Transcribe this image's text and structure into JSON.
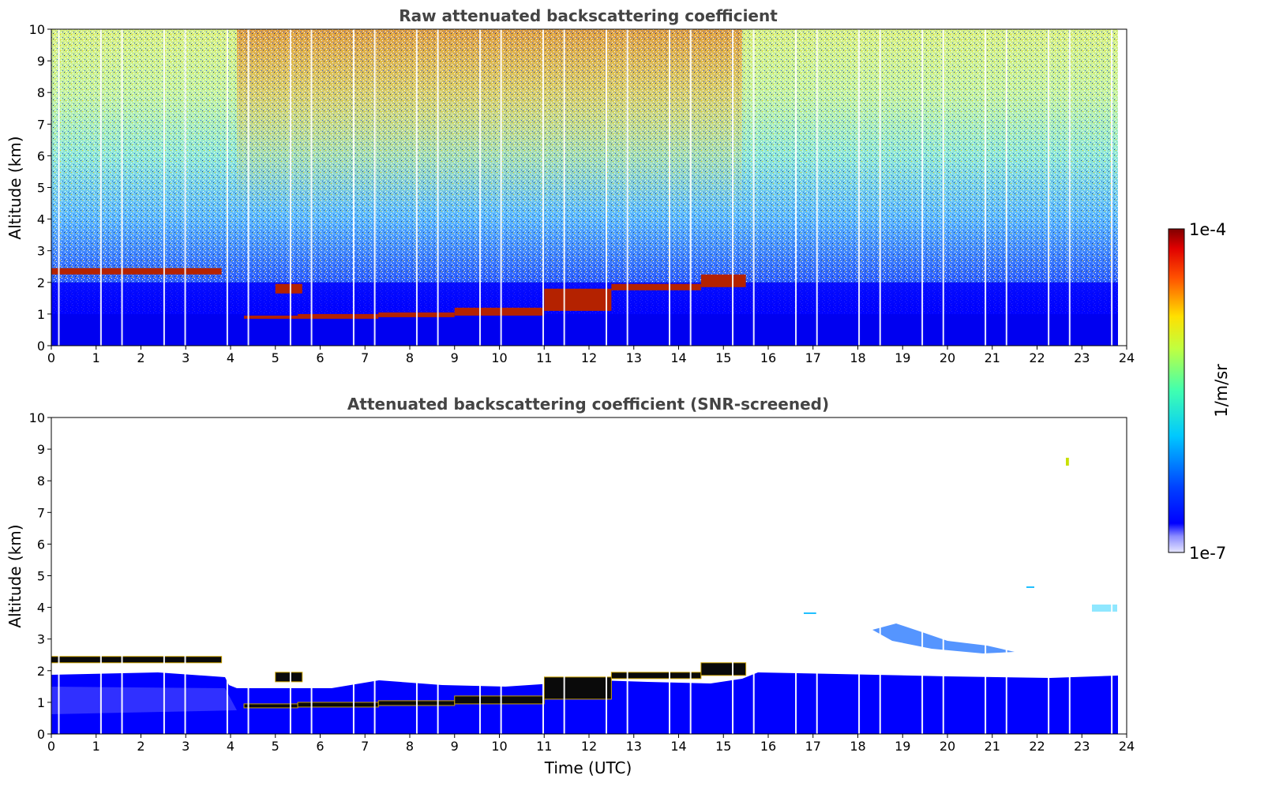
{
  "chart_data": [
    {
      "type": "heatmap",
      "title": "Raw attenuated backscattering coefficient",
      "xlabel": "",
      "ylabel": "Altitude (km)",
      "xlim": [
        0,
        24
      ],
      "ylim": [
        0,
        10
      ],
      "x_ticks": [
        "0",
        "1",
        "2",
        "3",
        "4",
        "5",
        "6",
        "7",
        "8",
        "9",
        "10",
        "11",
        "12",
        "13",
        "14",
        "15",
        "16",
        "17",
        "18",
        "19",
        "20",
        "21",
        "22",
        "23",
        "24"
      ],
      "y_ticks": [
        "0",
        "1",
        "2",
        "3",
        "4",
        "5",
        "6",
        "7",
        "8",
        "9",
        "10"
      ],
      "screened": false,
      "grid": false,
      "colormap": "jet",
      "layers": [
        {
          "time": [
            0.0,
            3.8
          ],
          "altitude": [
            2.25,
            2.45
          ]
        },
        {
          "time": [
            5.0,
            5.6
          ],
          "altitude": [
            1.65,
            1.95
          ]
        },
        {
          "time": [
            4.3,
            5.5
          ],
          "altitude": [
            0.85,
            0.95
          ]
        },
        {
          "time": [
            5.5,
            7.3
          ],
          "altitude": [
            0.85,
            1.0
          ]
        },
        {
          "time": [
            7.3,
            9.0
          ],
          "altitude": [
            0.9,
            1.05
          ]
        },
        {
          "time": [
            9.0,
            11.0
          ],
          "altitude": [
            0.95,
            1.2
          ]
        },
        {
          "time": [
            11.0,
            12.5
          ],
          "altitude": [
            1.1,
            1.8
          ]
        },
        {
          "time": [
            12.5,
            14.5
          ],
          "altitude": [
            1.75,
            1.95
          ]
        },
        {
          "time": [
            14.5,
            15.5
          ],
          "altitude": [
            1.85,
            2.25
          ]
        }
      ]
    },
    {
      "type": "heatmap",
      "title": "Attenuated backscattering coefficient (SNR-screened)",
      "xlabel": "Time (UTC)",
      "ylabel": "Altitude (km)",
      "xlim": [
        0,
        24
      ],
      "ylim": [
        0,
        10
      ],
      "x_ticks": [
        "0",
        "1",
        "2",
        "3",
        "4",
        "5",
        "6",
        "7",
        "8",
        "9",
        "10",
        "11",
        "12",
        "13",
        "14",
        "15",
        "16",
        "17",
        "18",
        "19",
        "20",
        "21",
        "22",
        "23",
        "24"
      ],
      "y_ticks": [
        "0",
        "1",
        "2",
        "3",
        "4",
        "5",
        "6",
        "7",
        "8",
        "9",
        "10"
      ],
      "screened": true,
      "grid": false,
      "colormap": "jet",
      "features": [
        {
          "name": "aerosol layer",
          "time": [
            18.8,
            21.3
          ],
          "altitude": [
            2.7,
            3.2
          ]
        },
        {
          "name": "small cloud",
          "time": [
            22.7,
            22.85
          ],
          "altitude": [
            8.4,
            8.8
          ]
        }
      ]
    }
  ],
  "colorbar": {
    "label": "1/m/sr",
    "max_label": "1e-4",
    "min_label": "1e-7"
  }
}
